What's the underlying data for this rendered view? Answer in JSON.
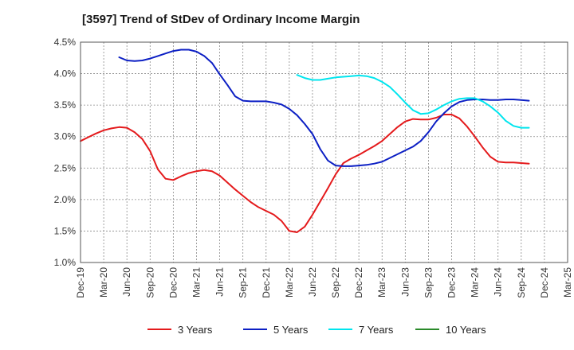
{
  "chart_data": {
    "type": "line",
    "title": "[3597]  Trend of StDev of Ordinary Income Margin",
    "xlabel": "",
    "ylabel": "",
    "x_ticks": [
      "Dec-19",
      "Mar-20",
      "Jun-20",
      "Sep-20",
      "Dec-20",
      "Mar-21",
      "Jun-21",
      "Sep-21",
      "Dec-21",
      "Mar-22",
      "Jun-22",
      "Sep-22",
      "Dec-22",
      "Mar-23",
      "Jun-23",
      "Sep-23",
      "Dec-23",
      "Mar-24",
      "Jun-24",
      "Sep-24",
      "Dec-24",
      "Mar-25"
    ],
    "y_ticks": [
      "1.0%",
      "1.5%",
      "2.0%",
      "2.5%",
      "3.0%",
      "3.5%",
      "4.0%",
      "4.5%"
    ],
    "ylim": [
      1.0,
      4.5
    ],
    "grid": true,
    "legend_position": "bottom",
    "series": [
      {
        "name": "3 Years",
        "color": "#e41a1c",
        "points": [
          [
            "Dec-19",
            2.93
          ],
          [
            "Jan-20",
            2.99
          ],
          [
            "Feb-20",
            3.05
          ],
          [
            "Mar-20",
            3.1
          ],
          [
            "Apr-20",
            3.13
          ],
          [
            "May-20",
            3.15
          ],
          [
            "Jun-20",
            3.14
          ],
          [
            "Jul-20",
            3.07
          ],
          [
            "Aug-20",
            2.96
          ],
          [
            "Sep-20",
            2.77
          ],
          [
            "Oct-20",
            2.48
          ],
          [
            "Nov-20",
            2.33
          ],
          [
            "Dec-20",
            2.31
          ],
          [
            "Jan-21",
            2.37
          ],
          [
            "Feb-21",
            2.42
          ],
          [
            "Mar-21",
            2.45
          ],
          [
            "Apr-21",
            2.47
          ],
          [
            "May-21",
            2.45
          ],
          [
            "Jun-21",
            2.38
          ],
          [
            "Jul-21",
            2.27
          ],
          [
            "Aug-21",
            2.16
          ],
          [
            "Sep-21",
            2.06
          ],
          [
            "Oct-21",
            1.96
          ],
          [
            "Nov-21",
            1.88
          ],
          [
            "Dec-21",
            1.82
          ],
          [
            "Jan-22",
            1.76
          ],
          [
            "Feb-22",
            1.66
          ],
          [
            "Mar-22",
            1.5
          ],
          [
            "Apr-22",
            1.48
          ],
          [
            "May-22",
            1.57
          ],
          [
            "Jun-22",
            1.76
          ],
          [
            "Jul-22",
            1.97
          ],
          [
            "Aug-22",
            2.18
          ],
          [
            "Sep-22",
            2.4
          ],
          [
            "Oct-22",
            2.58
          ],
          [
            "Nov-22",
            2.65
          ],
          [
            "Dec-22",
            2.71
          ],
          [
            "Jan-23",
            2.78
          ],
          [
            "Feb-23",
            2.85
          ],
          [
            "Mar-23",
            2.93
          ],
          [
            "Apr-23",
            3.04
          ],
          [
            "May-23",
            3.15
          ],
          [
            "Jun-23",
            3.24
          ],
          [
            "Jul-23",
            3.28
          ],
          [
            "Aug-23",
            3.27
          ],
          [
            "Sep-23",
            3.27
          ],
          [
            "Oct-23",
            3.3
          ],
          [
            "Nov-23",
            3.35
          ],
          [
            "Dec-23",
            3.35
          ],
          [
            "Jan-24",
            3.29
          ],
          [
            "Feb-24",
            3.16
          ],
          [
            "Mar-24",
            3.0
          ],
          [
            "Apr-24",
            2.83
          ],
          [
            "May-24",
            2.68
          ],
          [
            "Jun-24",
            2.6
          ],
          [
            "Jul-24",
            2.59
          ],
          [
            "Aug-24",
            2.59
          ],
          [
            "Sep-24",
            2.58
          ],
          [
            "Oct-24",
            2.57
          ]
        ]
      },
      {
        "name": "5 Years",
        "color": "#0c1fc4",
        "points": [
          [
            "May-20",
            4.26
          ],
          [
            "Jun-20",
            4.21
          ],
          [
            "Jul-20",
            4.2
          ],
          [
            "Aug-20",
            4.21
          ],
          [
            "Sep-20",
            4.24
          ],
          [
            "Oct-20",
            4.28
          ],
          [
            "Nov-20",
            4.32
          ],
          [
            "Dec-20",
            4.36
          ],
          [
            "Jan-21",
            4.38
          ],
          [
            "Feb-21",
            4.38
          ],
          [
            "Mar-21",
            4.35
          ],
          [
            "Apr-21",
            4.28
          ],
          [
            "May-21",
            4.17
          ],
          [
            "Jun-21",
            3.99
          ],
          [
            "Jul-21",
            3.82
          ],
          [
            "Aug-21",
            3.64
          ],
          [
            "Sep-21",
            3.57
          ],
          [
            "Oct-21",
            3.56
          ],
          [
            "Nov-21",
            3.56
          ],
          [
            "Dec-21",
            3.56
          ],
          [
            "Jan-22",
            3.54
          ],
          [
            "Feb-22",
            3.51
          ],
          [
            "Mar-22",
            3.44
          ],
          [
            "Apr-22",
            3.34
          ],
          [
            "May-22",
            3.2
          ],
          [
            "Jun-22",
            3.04
          ],
          [
            "Jul-22",
            2.8
          ],
          [
            "Aug-22",
            2.62
          ],
          [
            "Sep-22",
            2.54
          ],
          [
            "Oct-22",
            2.53
          ],
          [
            "Nov-22",
            2.53
          ],
          [
            "Dec-22",
            2.54
          ],
          [
            "Jan-23",
            2.55
          ],
          [
            "Feb-23",
            2.57
          ],
          [
            "Mar-23",
            2.6
          ],
          [
            "Apr-23",
            2.66
          ],
          [
            "May-23",
            2.72
          ],
          [
            "Jun-23",
            2.78
          ],
          [
            "Jul-23",
            2.84
          ],
          [
            "Aug-23",
            2.93
          ],
          [
            "Sep-23",
            3.07
          ],
          [
            "Oct-23",
            3.24
          ],
          [
            "Nov-23",
            3.37
          ],
          [
            "Dec-23",
            3.48
          ],
          [
            "Jan-24",
            3.55
          ],
          [
            "Feb-24",
            3.58
          ],
          [
            "Mar-24",
            3.59
          ],
          [
            "Apr-24",
            3.59
          ],
          [
            "May-24",
            3.58
          ],
          [
            "Jun-24",
            3.58
          ],
          [
            "Jul-24",
            3.59
          ],
          [
            "Aug-24",
            3.59
          ],
          [
            "Sep-24",
            3.58
          ],
          [
            "Oct-24",
            3.57
          ]
        ]
      },
      {
        "name": "7 Years",
        "color": "#00e5ee",
        "points": [
          [
            "Apr-22",
            3.98
          ],
          [
            "May-22",
            3.93
          ],
          [
            "Jun-22",
            3.9
          ],
          [
            "Jul-22",
            3.9
          ],
          [
            "Aug-22",
            3.92
          ],
          [
            "Sep-22",
            3.94
          ],
          [
            "Oct-22",
            3.95
          ],
          [
            "Nov-22",
            3.96
          ],
          [
            "Dec-22",
            3.97
          ],
          [
            "Jan-23",
            3.96
          ],
          [
            "Feb-23",
            3.93
          ],
          [
            "Mar-23",
            3.87
          ],
          [
            "Apr-23",
            3.79
          ],
          [
            "May-23",
            3.67
          ],
          [
            "Jun-23",
            3.54
          ],
          [
            "Jul-23",
            3.42
          ],
          [
            "Aug-23",
            3.36
          ],
          [
            "Sep-23",
            3.37
          ],
          [
            "Oct-23",
            3.43
          ],
          [
            "Nov-23",
            3.5
          ],
          [
            "Dec-23",
            3.56
          ],
          [
            "Jan-24",
            3.6
          ],
          [
            "Feb-24",
            3.61
          ],
          [
            "Mar-24",
            3.61
          ],
          [
            "Apr-24",
            3.56
          ],
          [
            "May-24",
            3.48
          ],
          [
            "Jun-24",
            3.38
          ],
          [
            "Jul-24",
            3.25
          ],
          [
            "Aug-24",
            3.17
          ],
          [
            "Sep-24",
            3.14
          ],
          [
            "Oct-24",
            3.14
          ]
        ]
      },
      {
        "name": "10 Years",
        "color": "#2a8a2a",
        "points": []
      }
    ]
  }
}
